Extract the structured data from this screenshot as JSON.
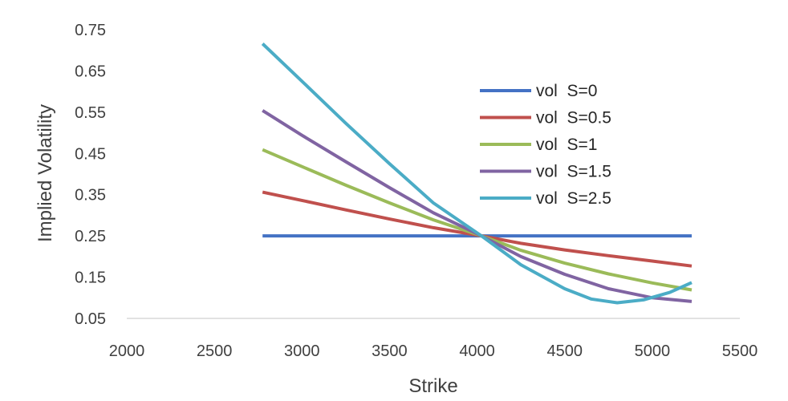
{
  "chart_data": {
    "type": "line",
    "title": "",
    "xlabel": "Strike",
    "ylabel": "Implied Volatility",
    "xlim": [
      2000,
      5500
    ],
    "ylim": [
      0.05,
      0.75
    ],
    "xticks": [
      2000,
      2500,
      3000,
      3500,
      4000,
      4500,
      5000,
      5500
    ],
    "yticks": [
      "0.05",
      "0.15",
      "0.25",
      "0.35",
      "0.45",
      "0.55",
      "0.65",
      "0.75"
    ],
    "grid": false,
    "legend_position": "right-inside",
    "series": [
      {
        "name": "vol  S=0",
        "color": "#4472C4",
        "points": [
          [
            2775,
            0.25
          ],
          [
            3000,
            0.25
          ],
          [
            3500,
            0.25
          ],
          [
            4025,
            0.25
          ],
          [
            4500,
            0.25
          ],
          [
            5000,
            0.25
          ],
          [
            5225,
            0.25
          ]
        ]
      },
      {
        "name": "vol  S=0.5",
        "color": "#C0504D",
        "points": [
          [
            2775,
            0.356
          ],
          [
            3000,
            0.336
          ],
          [
            3250,
            0.313
          ],
          [
            3500,
            0.291
          ],
          [
            3750,
            0.27
          ],
          [
            4025,
            0.25
          ],
          [
            4250,
            0.232
          ],
          [
            4500,
            0.216
          ],
          [
            4750,
            0.202
          ],
          [
            5000,
            0.189
          ],
          [
            5225,
            0.177
          ]
        ]
      },
      {
        "name": "vol  S=1",
        "color": "#9BBB59",
        "points": [
          [
            2775,
            0.459
          ],
          [
            3000,
            0.418
          ],
          [
            3250,
            0.373
          ],
          [
            3500,
            0.33
          ],
          [
            3750,
            0.289
          ],
          [
            4025,
            0.25
          ],
          [
            4250,
            0.215
          ],
          [
            4500,
            0.184
          ],
          [
            4750,
            0.158
          ],
          [
            5000,
            0.136
          ],
          [
            5225,
            0.119
          ]
        ]
      },
      {
        "name": "vol  S=1.5",
        "color": "#8064A2",
        "points": [
          [
            2775,
            0.554
          ],
          [
            3000,
            0.494
          ],
          [
            3250,
            0.43
          ],
          [
            3500,
            0.367
          ],
          [
            3750,
            0.306
          ],
          [
            4025,
            0.25
          ],
          [
            4250,
            0.2
          ],
          [
            4500,
            0.157
          ],
          [
            4750,
            0.122
          ],
          [
            5000,
            0.1
          ],
          [
            5225,
            0.091
          ]
        ]
      },
      {
        "name": "vol  S=2.5",
        "color": "#4BACC6",
        "points": [
          [
            2775,
            0.716
          ],
          [
            3000,
            0.625
          ],
          [
            3250,
            0.523
          ],
          [
            3500,
            0.425
          ],
          [
            3750,
            0.33
          ],
          [
            4025,
            0.25
          ],
          [
            4250,
            0.18
          ],
          [
            4500,
            0.122
          ],
          [
            4650,
            0.097
          ],
          [
            4800,
            0.088
          ],
          [
            4950,
            0.095
          ],
          [
            5100,
            0.113
          ],
          [
            5225,
            0.137
          ]
        ]
      }
    ]
  }
}
